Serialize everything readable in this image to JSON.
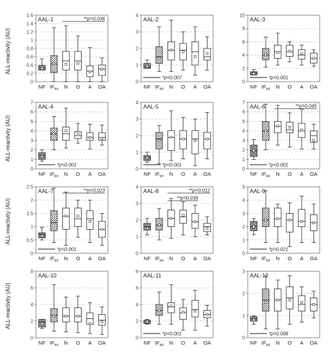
{
  "figure": {
    "ylabel": "ALL-reactivity (AU)",
    "xlabel_main": "IF",
    "xlabel_sub": "tot"
  },
  "chart_data": [
    {
      "type": "box",
      "title": "AAL-1",
      "categories": [
        "NF",
        "IFtot",
        "N",
        "O",
        "A",
        "OA"
      ],
      "ylim": [
        0,
        1.6
      ],
      "yticks": [
        0,
        0.2,
        0.4,
        0.6,
        0.8,
        1,
        1.2,
        1.4,
        1.6
      ],
      "grid": true,
      "boxes": [
        {
          "whisker_low": 0.28,
          "q1": 0.28,
          "median": 0.33,
          "q3": 0.39,
          "whisker_high": 0.55,
          "mean": 0.32
        },
        {
          "whisker_low": 0,
          "q1": 0.22,
          "median": 0.43,
          "q3": 0.63,
          "whisker_high": 1.3,
          "mean": 0.43
        },
        {
          "whisker_low": 0,
          "q1": 0.28,
          "median": 0.5,
          "q3": 0.73,
          "whisker_high": 1.35,
          "mean": 0.42
        },
        {
          "whisker_low": 0,
          "q1": 0.28,
          "median": 0.5,
          "q3": 0.73,
          "whisker_high": 1.1,
          "mean": 0.44
        },
        {
          "whisker_low": 0,
          "q1": 0.12,
          "median": 0.25,
          "q3": 0.38,
          "whisker_high": 0.82,
          "mean": 0.24
        },
        {
          "whisker_low": 0,
          "q1": 0.15,
          "median": 0.3,
          "q3": 0.4,
          "whisker_high": 0.57,
          "mean": 0.3
        }
      ],
      "annotations": [
        {
          "text": "**p=0.036",
          "from": 2,
          "to": 5,
          "position": "top"
        }
      ]
    },
    {
      "type": "box",
      "title": "AAL-2",
      "categories": [
        "NF",
        "IFtot",
        "N",
        "O",
        "A",
        "OA"
      ],
      "ylim": [
        0,
        4
      ],
      "yticks": [
        0,
        1,
        2,
        3,
        4
      ],
      "grid": true,
      "boxes": [
        {
          "whisker_low": 0.8,
          "q1": 0.8,
          "median": 0.9,
          "q3": 1.1,
          "whisker_high": 1.3,
          "mean": 0.92
        },
        {
          "whisker_low": 0.6,
          "q1": 1.1,
          "median": 1.5,
          "q3": 2.1,
          "whisker_high": 3.3,
          "mean": 1.4
        },
        {
          "whisker_low": 0.6,
          "q1": 1.3,
          "median": 1.9,
          "q3": 2.4,
          "whisker_high": 3.7,
          "mean": 1.9
        },
        {
          "whisker_low": 0.7,
          "q1": 1.3,
          "median": 1.9,
          "q3": 2.3,
          "whisker_high": 3.0,
          "mean": 1.8
        },
        {
          "whisker_low": 0.4,
          "q1": 1.0,
          "median": 1.8,
          "q3": 2.4,
          "whisker_high": 3.3,
          "mean": 1.5
        },
        {
          "whisker_low": 0.7,
          "q1": 1.3,
          "median": 1.5,
          "q3": 2.0,
          "whisker_high": 2.7,
          "mean": 1.7
        }
      ],
      "annotations": [
        {
          "text": "*p=0.007",
          "from": 0,
          "to": 1,
          "position": "bottom"
        }
      ]
    },
    {
      "type": "box",
      "title": "AAL-3",
      "categories": [
        "NF",
        "IFtot",
        "N",
        "O",
        "A",
        "OA"
      ],
      "ylim": [
        0,
        10
      ],
      "yticks": [
        0,
        2,
        4,
        6,
        8,
        10
      ],
      "grid": true,
      "boxes": [
        {
          "whisker_low": 1.0,
          "q1": 1.0,
          "median": 1.3,
          "q3": 1.5,
          "whisker_high": 1.8,
          "mean": 1.2
        },
        {
          "whisker_low": 2.2,
          "q1": 3.3,
          "median": 4.0,
          "q3": 5.0,
          "whisker_high": 6.7,
          "mean": 4.1
        },
        {
          "whisker_low": 2.5,
          "q1": 3.5,
          "median": 4.5,
          "q3": 5.5,
          "whisker_high": 7.3,
          "mean": 4.4
        },
        {
          "whisker_low": 3.0,
          "q1": 3.8,
          "median": 4.5,
          "q3": 5.5,
          "whisker_high": 6.0,
          "mean": 4.6
        },
        {
          "whisker_low": 2.5,
          "q1": 3.4,
          "median": 4.0,
          "q3": 4.8,
          "whisker_high": 5.5,
          "mean": 4.2
        },
        {
          "whisker_low": 2.3,
          "q1": 2.8,
          "median": 3.5,
          "q3": 4.3,
          "whisker_high": 4.8,
          "mean": 3.5
        }
      ],
      "annotations": [
        {
          "text": "*p<0.001",
          "from": 0,
          "to": 1,
          "position": "bottom"
        }
      ]
    },
    {
      "type": "box",
      "title": "AAL-4",
      "categories": [
        "NF",
        "IFtot",
        "N",
        "O",
        "A",
        "OA"
      ],
      "ylim": [
        0,
        7
      ],
      "yticks": [
        0,
        1,
        2,
        3,
        4,
        5,
        6,
        7
      ],
      "grid": true,
      "boxes": [
        {
          "whisker_low": 0.8,
          "q1": 1.0,
          "median": 1.4,
          "q3": 1.7,
          "whisker_high": 2.0,
          "mean": 1.3
        },
        {
          "whisker_low": 2.0,
          "q1": 3.0,
          "median": 3.7,
          "q3": 4.3,
          "whisker_high": 5.5,
          "mean": 3.7
        },
        {
          "whisker_low": 2.2,
          "q1": 3.0,
          "median": 3.7,
          "q3": 4.4,
          "whisker_high": 6.4,
          "mean": 4.0
        },
        {
          "whisker_low": 2.7,
          "q1": 3.2,
          "median": 3.5,
          "q3": 3.9,
          "whisker_high": 4.8,
          "mean": 3.6
        },
        {
          "whisker_low": 2.1,
          "q1": 3.0,
          "median": 3.3,
          "q3": 3.8,
          "whisker_high": 4.7,
          "mean": 3.3
        },
        {
          "whisker_low": 2.5,
          "q1": 3.0,
          "median": 3.3,
          "q3": 3.8,
          "whisker_high": 4.6,
          "mean": 3.2
        }
      ],
      "annotations": [
        {
          "text": "*p<0.001",
          "from": 0,
          "to": 1,
          "position": "bottom"
        }
      ]
    },
    {
      "type": "box",
      "title": "AAL-5",
      "categories": [
        "NF",
        "IFtot",
        "N",
        "O",
        "A",
        "OA"
      ],
      "ylim": [
        0,
        4
      ],
      "yticks": [
        0,
        1,
        2,
        3,
        4
      ],
      "grid": true,
      "boxes": [
        {
          "whisker_low": 0.4,
          "q1": 0.5,
          "median": 0.7,
          "q3": 0.8,
          "whisker_high": 1.0,
          "mean": 0.68
        },
        {
          "whisker_low": 0.3,
          "q1": 1.2,
          "median": 1.8,
          "q3": 2.2,
          "whisker_high": 2.6,
          "mean": 1.7
        },
        {
          "whisker_low": 0.5,
          "q1": 1.1,
          "median": 1.9,
          "q3": 2.3,
          "whisker_high": 3.5,
          "mean": 1.9
        },
        {
          "whisker_low": 0.6,
          "q1": 1.2,
          "median": 1.8,
          "q3": 2.3,
          "whisker_high": 3.1,
          "mean": 1.8
        },
        {
          "whisker_low": 0.2,
          "q1": 0.9,
          "median": 1.8,
          "q3": 2.3,
          "whisker_high": 3.0,
          "mean": 1.7
        },
        {
          "whisker_low": 0.6,
          "q1": 1.2,
          "median": 1.8,
          "q3": 2.2,
          "whisker_high": 3.4,
          "mean": 1.8
        }
      ],
      "annotations": [
        {
          "text": "*p<0.001",
          "from": 0,
          "to": 1,
          "position": "bottom"
        }
      ]
    },
    {
      "type": "box",
      "title": "AAL-6",
      "categories": [
        "NF",
        "IFtot",
        "N",
        "O",
        "A",
        "OA"
      ],
      "ylim": [
        0,
        7
      ],
      "yticks": [
        0,
        1,
        2,
        3,
        4,
        5,
        6,
        7
      ],
      "grid": true,
      "boxes": [
        {
          "whisker_low": 1.0,
          "q1": 1.3,
          "median": 1.9,
          "q3": 2.5,
          "whisker_high": 3.1,
          "mean": 1.9
        },
        {
          "whisker_low": 2.0,
          "q1": 3.0,
          "median": 4.0,
          "q3": 5.0,
          "whisker_high": 6.8,
          "mean": 4.0
        },
        {
          "whisker_low": 2.5,
          "q1": 3.8,
          "median": 4.5,
          "q3": 5.0,
          "whisker_high": 6.7,
          "mean": 4.5
        },
        {
          "whisker_low": 2.3,
          "q1": 3.8,
          "median": 4.1,
          "q3": 4.9,
          "whisker_high": 5.9,
          "mean": 4.4
        },
        {
          "whisker_low": 2.1,
          "q1": 3.3,
          "median": 4.0,
          "q3": 4.8,
          "whisker_high": 6.3,
          "mean": 4.1
        },
        {
          "whisker_low": 2.1,
          "q1": 2.8,
          "median": 3.5,
          "q3": 4.0,
          "whisker_high": 4.7,
          "mean": 3.0
        }
      ],
      "annotations": [
        {
          "text": "**p=0.045",
          "from": 2,
          "to": 5,
          "position": "top"
        },
        {
          "text": "*p<0.001",
          "from": 0,
          "to": 1,
          "position": "bottom"
        }
      ]
    },
    {
      "type": "box",
      "title": "AAL-7",
      "categories": [
        "NF",
        "IFtot",
        "N",
        "O",
        "A",
        "OA"
      ],
      "ylim": [
        0,
        2.5
      ],
      "yticks": [
        0,
        0.5,
        1,
        1.5,
        2,
        2.5
      ],
      "grid": true,
      "boxes": [
        {
          "whisker_low": 0.5,
          "q1": 0.58,
          "median": 0.7,
          "q3": 0.77,
          "whisker_high": 0.98,
          "mean": 0.65
        },
        {
          "whisker_low": 0.4,
          "q1": 0.85,
          "median": 1.15,
          "q3": 1.6,
          "whisker_high": 2.45,
          "mean": 1.2
        },
        {
          "whisker_low": 0.3,
          "q1": 0.9,
          "median": 1.4,
          "q3": 1.7,
          "whisker_high": 2.3,
          "mean": 1.4
        },
        {
          "whisker_low": 0.6,
          "q1": 1.0,
          "median": 1.3,
          "q3": 1.7,
          "whisker_high": 2.0,
          "mean": 1.4
        },
        {
          "whisker_low": 0.4,
          "q1": 0.9,
          "median": 1.3,
          "q3": 1.6,
          "whisker_high": 2.0,
          "mean": 1.2
        },
        {
          "whisker_low": 0.3,
          "q1": 0.6,
          "median": 0.9,
          "q3": 1.2,
          "whisker_high": 1.5,
          "mean": 0.9
        }
      ],
      "annotations": [
        {
          "text": "**p=0.023",
          "from": 2,
          "to": 5,
          "position": "top"
        },
        {
          "text": "*p<0.001",
          "from": 0,
          "to": 1,
          "position": "bottom"
        }
      ]
    },
    {
      "type": "box",
      "title": "AAL-8",
      "categories": [
        "NF",
        "IFtot",
        "N",
        "O",
        "A",
        "OA"
      ],
      "ylim": [
        0,
        4
      ],
      "yticks": [
        0,
        1,
        2,
        3,
        4
      ],
      "grid": true,
      "boxes": [
        {
          "whisker_low": 1.1,
          "q1": 1.4,
          "median": 1.6,
          "q3": 1.8,
          "whisker_high": 2.1,
          "mean": 1.5
        },
        {
          "whisker_low": 0.8,
          "q1": 1.4,
          "median": 1.7,
          "q3": 2.1,
          "whisker_high": 2.7,
          "mean": 1.7
        },
        {
          "whisker_low": 0.9,
          "q1": 1.6,
          "median": 2.1,
          "q3": 2.6,
          "whisker_high": 3.3,
          "mean": 2.1
        },
        {
          "whisker_low": 1.1,
          "q1": 1.8,
          "median": 2.2,
          "q3": 2.6,
          "whisker_high": 3.1,
          "mean": 2.3
        },
        {
          "whisker_low": 1.0,
          "q1": 1.5,
          "median": 1.9,
          "q3": 2.4,
          "whisker_high": 2.9,
          "mean": 1.9
        },
        {
          "whisker_low": 1.1,
          "q1": 1.3,
          "median": 1.6,
          "q3": 1.8,
          "whisker_high": 2.2,
          "mean": 1.5
        }
      ],
      "annotations": [
        {
          "text": "**p=0.012",
          "from": 2,
          "to": 5,
          "position": "top"
        },
        {
          "text": "**p=0.039",
          "from": 2,
          "to": 4,
          "position": "top"
        }
      ]
    },
    {
      "type": "box",
      "title": "AAL-9",
      "categories": [
        "NF",
        "IFtot",
        "N",
        "O",
        "A",
        "OA"
      ],
      "ylim": [
        0,
        5
      ],
      "yticks": [
        0,
        1,
        2,
        3,
        4,
        5
      ],
      "grid": true,
      "boxes": [
        {
          "whisker_low": 1.4,
          "q1": 1.7,
          "median": 2.0,
          "q3": 2.4,
          "whisker_high": 2.6,
          "mean": 2.0
        },
        {
          "whisker_low": 0.8,
          "q1": 2.0,
          "median": 2.5,
          "q3": 3.4,
          "whisker_high": 4.7,
          "mean": 2.5
        },
        {
          "whisker_low": 0.8,
          "q1": 2.0,
          "median": 2.6,
          "q3": 3.4,
          "whisker_high": 3.7,
          "mean": 2.6
        },
        {
          "whisker_low": 0.5,
          "q1": 1.6,
          "median": 2.5,
          "q3": 3.0,
          "whisker_high": 3.8,
          "mean": 2.5
        },
        {
          "whisker_low": 0.8,
          "q1": 2.0,
          "median": 2.4,
          "q3": 3.3,
          "whisker_high": 4.3,
          "mean": 2.4
        },
        {
          "whisker_low": 0.8,
          "q1": 1.7,
          "median": 2.3,
          "q3": 2.9,
          "whisker_high": 3.7,
          "mean": 2.3
        }
      ],
      "annotations": [
        {
          "text": "*p=0.021",
          "from": 0,
          "to": 1,
          "position": "bottom"
        }
      ]
    },
    {
      "type": "box",
      "title": "AAL-10",
      "categories": [
        "NF",
        "IFtot",
        "N",
        "O",
        "A",
        "OA"
      ],
      "ylim": [
        0,
        8
      ],
      "yticks": [
        0,
        2,
        4,
        6,
        8
      ],
      "grid": true,
      "boxes": [
        {
          "whisker_low": 1.1,
          "q1": 1.3,
          "median": 1.9,
          "q3": 2.2,
          "whisker_high": 2.2,
          "mean": 1.7
        },
        {
          "whisker_low": 0.8,
          "q1": 1.9,
          "median": 2.7,
          "q3": 3.5,
          "whisker_high": 6.4,
          "mean": 2.6
        },
        {
          "whisker_low": 0.7,
          "q1": 1.9,
          "median": 2.6,
          "q3": 3.6,
          "whisker_high": 4.9,
          "mean": 2.6
        },
        {
          "whisker_low": 0.6,
          "q1": 1.9,
          "median": 2.6,
          "q3": 3.6,
          "whisker_high": 5.0,
          "mean": 2.6
        },
        {
          "whisker_low": 0.5,
          "q1": 1.6,
          "median": 2.3,
          "q3": 3.0,
          "whisker_high": 4.2,
          "mean": 1.7
        },
        {
          "whisker_low": 0.4,
          "q1": 1.5,
          "median": 2.1,
          "q3": 2.8,
          "whisker_high": 3.7,
          "mean": 1.9
        }
      ],
      "annotations": []
    },
    {
      "type": "box",
      "title": "AAL-11",
      "categories": [
        "NF",
        "IFtot",
        "N",
        "O",
        "A",
        "OA"
      ],
      "ylim": [
        0,
        8
      ],
      "yticks": [
        0,
        2,
        4,
        6,
        8
      ],
      "grid": true,
      "boxes": [
        {
          "whisker_low": 1.6,
          "q1": 1.7,
          "median": 2.0,
          "q3": 2.1,
          "whisker_high": 2.2,
          "mean": 1.95
        },
        {
          "whisker_low": 1.6,
          "q1": 2.7,
          "median": 3.3,
          "q3": 4.0,
          "whisker_high": 5.5,
          "mean": 3.3
        },
        {
          "whisker_low": 1.6,
          "q1": 3.0,
          "median": 3.7,
          "q3": 4.2,
          "whisker_high": 6.4,
          "mean": 3.8
        },
        {
          "whisker_low": 0.9,
          "q1": 2.2,
          "median": 3.0,
          "q3": 3.6,
          "whisker_high": 4.6,
          "mean": 3.1
        },
        {
          "whisker_low": 0.9,
          "q1": 2.5,
          "median": 3.4,
          "q3": 4.5,
          "whisker_high": 5.7,
          "mean": 3.2
        },
        {
          "whisker_low": 1.4,
          "q1": 2.4,
          "median": 2.8,
          "q3": 3.3,
          "whisker_high": 3.9,
          "mean": 2.8
        }
      ],
      "annotations": [
        {
          "text": "*p<0.001",
          "from": 0,
          "to": 1,
          "position": "bottom"
        }
      ]
    },
    {
      "type": "box",
      "title": "AAL-12",
      "categories": [
        "NF",
        "IFtot",
        "N",
        "O",
        "A",
        "OA"
      ],
      "ylim": [
        0,
        3
      ],
      "yticks": [
        0,
        1,
        2,
        3
      ],
      "grid": true,
      "boxes": [
        {
          "whisker_low": 0.6,
          "q1": 0.75,
          "median": 0.85,
          "q3": 0.95,
          "whisker_high": 1.0,
          "mean": 0.8
        },
        {
          "whisker_low": 0.4,
          "q1": 1.2,
          "median": 1.7,
          "q3": 2.2,
          "whisker_high": 2.8,
          "mean": 1.6
        },
        {
          "whisker_low": 0.4,
          "q1": 1.2,
          "median": 1.7,
          "q3": 2.2,
          "whisker_high": 2.6,
          "mean": 1.7
        },
        {
          "whisker_low": 0.6,
          "q1": 1.3,
          "median": 1.8,
          "q3": 2.3,
          "whisker_high": 2.8,
          "mean": 1.7
        },
        {
          "whisker_low": 0.7,
          "q1": 1.2,
          "median": 1.5,
          "q3": 1.9,
          "whisker_high": 2.3,
          "mean": 1.6
        },
        {
          "whisker_low": 0.9,
          "q1": 1.2,
          "median": 1.5,
          "q3": 1.8,
          "whisker_high": 2.1,
          "mean": 1.5
        }
      ],
      "annotations": [
        {
          "text": "*p=0.008",
          "from": 0,
          "to": 1,
          "position": "bottom"
        }
      ]
    }
  ]
}
